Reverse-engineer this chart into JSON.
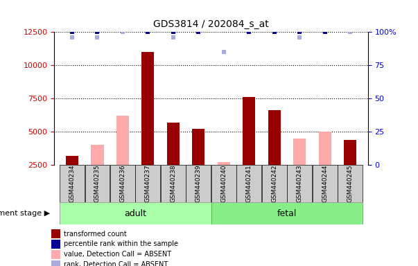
{
  "title": "GDS3814 / 202084_s_at",
  "samples": [
    "GSM440234",
    "GSM440235",
    "GSM440236",
    "GSM440237",
    "GSM440238",
    "GSM440239",
    "GSM440240",
    "GSM440241",
    "GSM440242",
    "GSM440243",
    "GSM440244",
    "GSM440245"
  ],
  "transformed_count": [
    3200,
    null,
    null,
    11000,
    5700,
    5200,
    null,
    7600,
    6600,
    null,
    null,
    4400
  ],
  "absent_value": [
    null,
    4000,
    6200,
    null,
    null,
    null,
    2700,
    null,
    null,
    4500,
    5000,
    null
  ],
  "percentile_rank": [
    100,
    100,
    100,
    100,
    100,
    100,
    null,
    100,
    100,
    100,
    100,
    100
  ],
  "absent_rank_vals": [
    96,
    96,
    100,
    null,
    96,
    null,
    85,
    null,
    null,
    96,
    null,
    100
  ],
  "adult_indices": [
    0,
    1,
    2,
    3,
    4,
    5
  ],
  "fetal_indices": [
    6,
    7,
    8,
    9,
    10,
    11
  ],
  "ylim_left": [
    2500,
    12500
  ],
  "ylim_right": [
    0,
    100
  ],
  "yticks_left": [
    2500,
    5000,
    7500,
    10000,
    12500
  ],
  "yticks_right": [
    0,
    25,
    50,
    75,
    100
  ],
  "bar_width": 0.5,
  "dark_red": "#990000",
  "light_pink": "#ffaaaa",
  "dark_blue": "#000099",
  "light_blue": "#aaaadd",
  "left_tick_color": "#cc0000",
  "right_tick_color": "#0000cc",
  "adult_green": "#aaffaa",
  "fetal_green": "#88ee88",
  "sample_box_color": "#cccccc",
  "dev_stage_label": "development stage",
  "legend_items": [
    {
      "label": "transformed count",
      "color": "#990000"
    },
    {
      "label": "percentile rank within the sample",
      "color": "#000099"
    },
    {
      "label": "value, Detection Call = ABSENT",
      "color": "#ffaaaa"
    },
    {
      "label": "rank, Detection Call = ABSENT",
      "color": "#aaaadd"
    }
  ]
}
